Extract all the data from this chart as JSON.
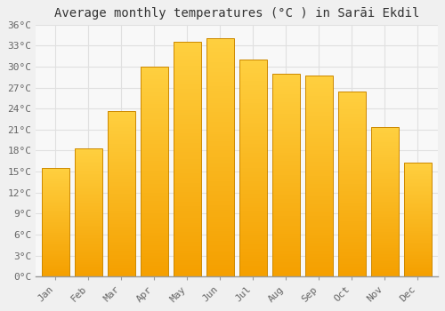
{
  "title": "Average monthly temperatures (°C ) in Sarāi Ekdil",
  "months": [
    "Jan",
    "Feb",
    "Mar",
    "Apr",
    "May",
    "Jun",
    "Jul",
    "Aug",
    "Sep",
    "Oct",
    "Nov",
    "Dec"
  ],
  "temperatures": [
    15.5,
    18.3,
    23.7,
    30.0,
    33.5,
    34.0,
    31.0,
    29.0,
    28.7,
    26.5,
    21.3,
    16.3
  ],
  "bar_color_top": "#FFD040",
  "bar_color_bottom": "#F5A000",
  "bar_edge_color": "#CC8800",
  "background_color": "#F0F0F0",
  "plot_bg_color": "#F8F8F8",
  "grid_color": "#E0E0E0",
  "text_color": "#666666",
  "title_color": "#333333",
  "ylim": [
    0,
    36
  ],
  "ytick_interval": 3,
  "title_fontsize": 10,
  "tick_fontsize": 8
}
